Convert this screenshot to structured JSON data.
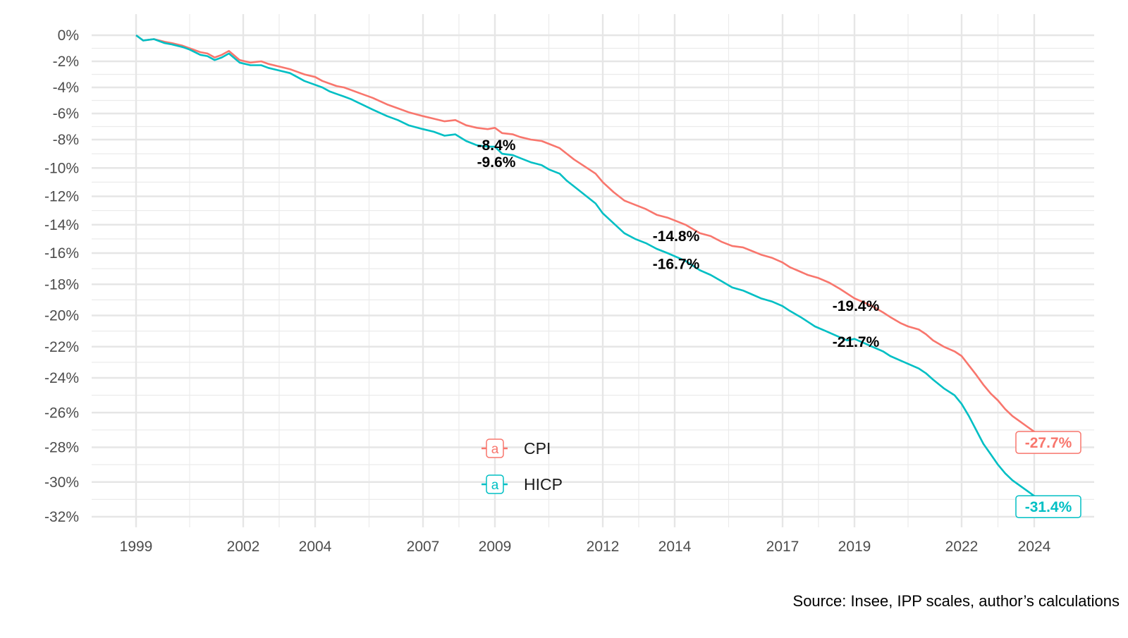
{
  "chart_data": {
    "type": "line",
    "title": "",
    "xlabel": "",
    "ylabel": "",
    "caption": "Source: Insee, IPP scales, author’s calculations",
    "xlim": [
      1998.0,
      2025.5
    ],
    "ylim": [
      -32.6,
      0.8
    ],
    "x_ticks": [
      {
        "value": 1999,
        "label": "1999"
      },
      {
        "value": 2002,
        "label": "2002"
      },
      {
        "value": 2004,
        "label": "2004"
      },
      {
        "value": 2007,
        "label": "2007"
      },
      {
        "value": 2009,
        "label": "2009"
      },
      {
        "value": 2012,
        "label": "2012"
      },
      {
        "value": 2014,
        "label": "2014"
      },
      {
        "value": 2017,
        "label": "2017"
      },
      {
        "value": 2019,
        "label": "2019"
      },
      {
        "value": 2022,
        "label": "2022"
      },
      {
        "value": 2024,
        "label": "2024"
      }
    ],
    "y_ticks": [
      {
        "value": 0,
        "label": "0%"
      },
      {
        "value": -2,
        "label": "-2%"
      },
      {
        "value": -4,
        "label": "-4%"
      },
      {
        "value": -6,
        "label": "-6%"
      },
      {
        "value": -8,
        "label": "-8%"
      },
      {
        "value": -10,
        "label": "-10%"
      },
      {
        "value": -12,
        "label": "-12%"
      },
      {
        "value": -14,
        "label": "-14%"
      },
      {
        "value": -16,
        "label": "-16%"
      },
      {
        "value": -18,
        "label": "-18%"
      },
      {
        "value": -20,
        "label": "-20%"
      },
      {
        "value": -22,
        "label": "-22%"
      },
      {
        "value": -24,
        "label": "-24%"
      },
      {
        "value": -26,
        "label": "-26%"
      },
      {
        "value": -28,
        "label": "-28%"
      },
      {
        "value": -30,
        "label": "-30%"
      },
      {
        "value": -32,
        "label": "-32%"
      }
    ],
    "grid": true,
    "legend": {
      "position": "center-bottom",
      "entries": [
        {
          "name": "CPI",
          "color": "#F8766D",
          "key_glyph": "a"
        },
        {
          "name": "HICP",
          "color": "#00BFC4",
          "key_glyph": "a"
        }
      ]
    },
    "series": [
      {
        "name": "CPI",
        "color": "#F8766D",
        "points": [
          [
            1999.0,
            0.0
          ],
          [
            1999.2,
            -0.4
          ],
          [
            1999.5,
            -0.3
          ],
          [
            1999.8,
            -0.5
          ],
          [
            2000.0,
            -0.6
          ],
          [
            2000.3,
            -0.8
          ],
          [
            2000.5,
            -1.0
          ],
          [
            2000.8,
            -1.3
          ],
          [
            2001.0,
            -1.4
          ],
          [
            2001.2,
            -1.7
          ],
          [
            2001.4,
            -1.5
          ],
          [
            2001.6,
            -1.2
          ],
          [
            2001.9,
            -1.9
          ],
          [
            2002.2,
            -2.1
          ],
          [
            2002.5,
            -2.0
          ],
          [
            2002.7,
            -2.2
          ],
          [
            2003.0,
            -2.4
          ],
          [
            2003.3,
            -2.6
          ],
          [
            2003.5,
            -2.8
          ],
          [
            2003.7,
            -3.0
          ],
          [
            2004.0,
            -3.2
          ],
          [
            2004.2,
            -3.5
          ],
          [
            2004.4,
            -3.7
          ],
          [
            2004.6,
            -3.9
          ],
          [
            2004.8,
            -4.0
          ],
          [
            2005.0,
            -4.2
          ],
          [
            2005.3,
            -4.5
          ],
          [
            2005.6,
            -4.8
          ],
          [
            2006.0,
            -5.3
          ],
          [
            2006.3,
            -5.6
          ],
          [
            2006.6,
            -5.9
          ],
          [
            2007.0,
            -6.2
          ],
          [
            2007.3,
            -6.4
          ],
          [
            2007.6,
            -6.6
          ],
          [
            2007.9,
            -6.5
          ],
          [
            2008.2,
            -6.9
          ],
          [
            2008.5,
            -7.1
          ],
          [
            2008.8,
            -7.2
          ],
          [
            2009.0,
            -7.1
          ],
          [
            2009.2,
            -7.5
          ],
          [
            2009.5,
            -7.6
          ],
          [
            2009.7,
            -7.8
          ],
          [
            2010.0,
            -8.0
          ],
          [
            2010.3,
            -8.1
          ],
          [
            2010.5,
            -8.3
          ],
          [
            2010.8,
            -8.6
          ],
          [
            2011.0,
            -9.0
          ],
          [
            2011.2,
            -9.4
          ],
          [
            2011.5,
            -9.9
          ],
          [
            2011.8,
            -10.4
          ],
          [
            2012.0,
            -11.0
          ],
          [
            2012.3,
            -11.7
          ],
          [
            2012.6,
            -12.3
          ],
          [
            2012.9,
            -12.6
          ],
          [
            2013.2,
            -12.9
          ],
          [
            2013.5,
            -13.3
          ],
          [
            2013.8,
            -13.5
          ],
          [
            2014.0,
            -13.7
          ],
          [
            2014.3,
            -14.0
          ],
          [
            2014.5,
            -14.3
          ],
          [
            2014.7,
            -14.6
          ],
          [
            2015.0,
            -14.8
          ],
          [
            2015.3,
            -15.2
          ],
          [
            2015.6,
            -15.5
          ],
          [
            2015.9,
            -15.6
          ],
          [
            2016.1,
            -15.8
          ],
          [
            2016.4,
            -16.1
          ],
          [
            2016.7,
            -16.3
          ],
          [
            2017.0,
            -16.6
          ],
          [
            2017.2,
            -16.9
          ],
          [
            2017.5,
            -17.2
          ],
          [
            2017.7,
            -17.4
          ],
          [
            2018.0,
            -17.6
          ],
          [
            2018.3,
            -17.9
          ],
          [
            2018.6,
            -18.3
          ],
          [
            2019.0,
            -18.9
          ],
          [
            2019.3,
            -19.2
          ],
          [
            2019.5,
            -19.4
          ],
          [
            2019.8,
            -19.8
          ],
          [
            2020.0,
            -20.1
          ],
          [
            2020.3,
            -20.5
          ],
          [
            2020.5,
            -20.7
          ],
          [
            2020.8,
            -20.9
          ],
          [
            2021.0,
            -21.2
          ],
          [
            2021.2,
            -21.6
          ],
          [
            2021.5,
            -22.0
          ],
          [
            2021.8,
            -22.3
          ],
          [
            2022.0,
            -22.6
          ],
          [
            2022.2,
            -23.2
          ],
          [
            2022.4,
            -23.8
          ],
          [
            2022.6,
            -24.4
          ],
          [
            2022.8,
            -24.9
          ],
          [
            2023.0,
            -25.3
          ],
          [
            2023.2,
            -25.8
          ],
          [
            2023.4,
            -26.2
          ],
          [
            2023.6,
            -26.5
          ],
          [
            2023.8,
            -26.8
          ],
          [
            2024.0,
            -27.1
          ],
          [
            2024.2,
            -27.4
          ],
          [
            2024.4,
            -27.7
          ]
        ]
      },
      {
        "name": "HICP",
        "color": "#00BFC4",
        "points": [
          [
            1999.0,
            0.0
          ],
          [
            1999.2,
            -0.4
          ],
          [
            1999.5,
            -0.3
          ],
          [
            1999.8,
            -0.6
          ],
          [
            2000.0,
            -0.7
          ],
          [
            2000.3,
            -0.9
          ],
          [
            2000.5,
            -1.1
          ],
          [
            2000.8,
            -1.5
          ],
          [
            2001.0,
            -1.6
          ],
          [
            2001.2,
            -1.9
          ],
          [
            2001.4,
            -1.7
          ],
          [
            2001.6,
            -1.4
          ],
          [
            2001.9,
            -2.1
          ],
          [
            2002.2,
            -2.3
          ],
          [
            2002.5,
            -2.3
          ],
          [
            2002.7,
            -2.5
          ],
          [
            2003.0,
            -2.7
          ],
          [
            2003.3,
            -2.9
          ],
          [
            2003.5,
            -3.2
          ],
          [
            2003.7,
            -3.5
          ],
          [
            2004.0,
            -3.8
          ],
          [
            2004.2,
            -4.0
          ],
          [
            2004.4,
            -4.3
          ],
          [
            2004.6,
            -4.5
          ],
          [
            2004.8,
            -4.7
          ],
          [
            2005.0,
            -4.9
          ],
          [
            2005.3,
            -5.3
          ],
          [
            2005.6,
            -5.7
          ],
          [
            2006.0,
            -6.2
          ],
          [
            2006.3,
            -6.5
          ],
          [
            2006.6,
            -6.9
          ],
          [
            2007.0,
            -7.2
          ],
          [
            2007.3,
            -7.4
          ],
          [
            2007.6,
            -7.7
          ],
          [
            2007.9,
            -7.6
          ],
          [
            2008.2,
            -8.1
          ],
          [
            2008.5,
            -8.4
          ],
          [
            2008.8,
            -8.5
          ],
          [
            2009.0,
            -8.5
          ],
          [
            2009.2,
            -9.0
          ],
          [
            2009.5,
            -9.1
          ],
          [
            2009.7,
            -9.3
          ],
          [
            2010.0,
            -9.6
          ],
          [
            2010.3,
            -9.8
          ],
          [
            2010.5,
            -10.1
          ],
          [
            2010.8,
            -10.4
          ],
          [
            2011.0,
            -10.9
          ],
          [
            2011.2,
            -11.3
          ],
          [
            2011.5,
            -11.9
          ],
          [
            2011.8,
            -12.5
          ],
          [
            2012.0,
            -13.2
          ],
          [
            2012.3,
            -13.9
          ],
          [
            2012.6,
            -14.6
          ],
          [
            2012.9,
            -15.0
          ],
          [
            2013.2,
            -15.3
          ],
          [
            2013.5,
            -15.7
          ],
          [
            2013.8,
            -16.0
          ],
          [
            2014.0,
            -16.2
          ],
          [
            2014.3,
            -16.5
          ],
          [
            2014.5,
            -16.8
          ],
          [
            2014.7,
            -17.1
          ],
          [
            2015.0,
            -17.4
          ],
          [
            2015.3,
            -17.8
          ],
          [
            2015.6,
            -18.2
          ],
          [
            2015.9,
            -18.4
          ],
          [
            2016.1,
            -18.6
          ],
          [
            2016.4,
            -18.9
          ],
          [
            2016.7,
            -19.1
          ],
          [
            2017.0,
            -19.4
          ],
          [
            2017.2,
            -19.7
          ],
          [
            2017.5,
            -20.1
          ],
          [
            2017.7,
            -20.4
          ],
          [
            2017.9,
            -20.7
          ],
          [
            2018.2,
            -21.0
          ],
          [
            2018.5,
            -21.3
          ],
          [
            2018.8,
            -21.6
          ],
          [
            2019.0,
            -21.5
          ],
          [
            2019.3,
            -21.8
          ],
          [
            2019.5,
            -22.0
          ],
          [
            2019.8,
            -22.3
          ],
          [
            2020.0,
            -22.6
          ],
          [
            2020.3,
            -22.9
          ],
          [
            2020.5,
            -23.1
          ],
          [
            2020.8,
            -23.4
          ],
          [
            2021.0,
            -23.7
          ],
          [
            2021.2,
            -24.1
          ],
          [
            2021.5,
            -24.6
          ],
          [
            2021.8,
            -25.0
          ],
          [
            2022.0,
            -25.5
          ],
          [
            2022.2,
            -26.2
          ],
          [
            2022.4,
            -27.0
          ],
          [
            2022.6,
            -27.8
          ],
          [
            2022.8,
            -28.4
          ],
          [
            2023.0,
            -29.0
          ],
          [
            2023.2,
            -29.5
          ],
          [
            2023.4,
            -29.9
          ],
          [
            2023.6,
            -30.2
          ],
          [
            2023.8,
            -30.5
          ],
          [
            2024.0,
            -30.8
          ],
          [
            2024.2,
            -31.1
          ],
          [
            2024.4,
            -31.4
          ]
        ]
      }
    ],
    "annotations": [
      {
        "x": 2009.0,
        "y": -8.4,
        "label": "-8.4%",
        "series": "CPI"
      },
      {
        "x": 2009.0,
        "y": -9.6,
        "label": "-9.6%",
        "series": "HICP"
      },
      {
        "x": 2014.0,
        "y": -14.8,
        "label": "-14.8%",
        "series": "CPI"
      },
      {
        "x": 2014.0,
        "y": -16.7,
        "label": "-16.7%",
        "series": "HICP"
      },
      {
        "x": 2019.0,
        "y": -19.4,
        "label": "-19.4%",
        "series": "CPI"
      },
      {
        "x": 2019.0,
        "y": -21.7,
        "label": "-21.7%",
        "series": "HICP"
      }
    ],
    "end_labels": [
      {
        "series": "CPI",
        "label": "-27.7%",
        "color": "#F8766D"
      },
      {
        "series": "HICP",
        "label": "-31.4%",
        "color": "#00BFC4"
      }
    ]
  }
}
